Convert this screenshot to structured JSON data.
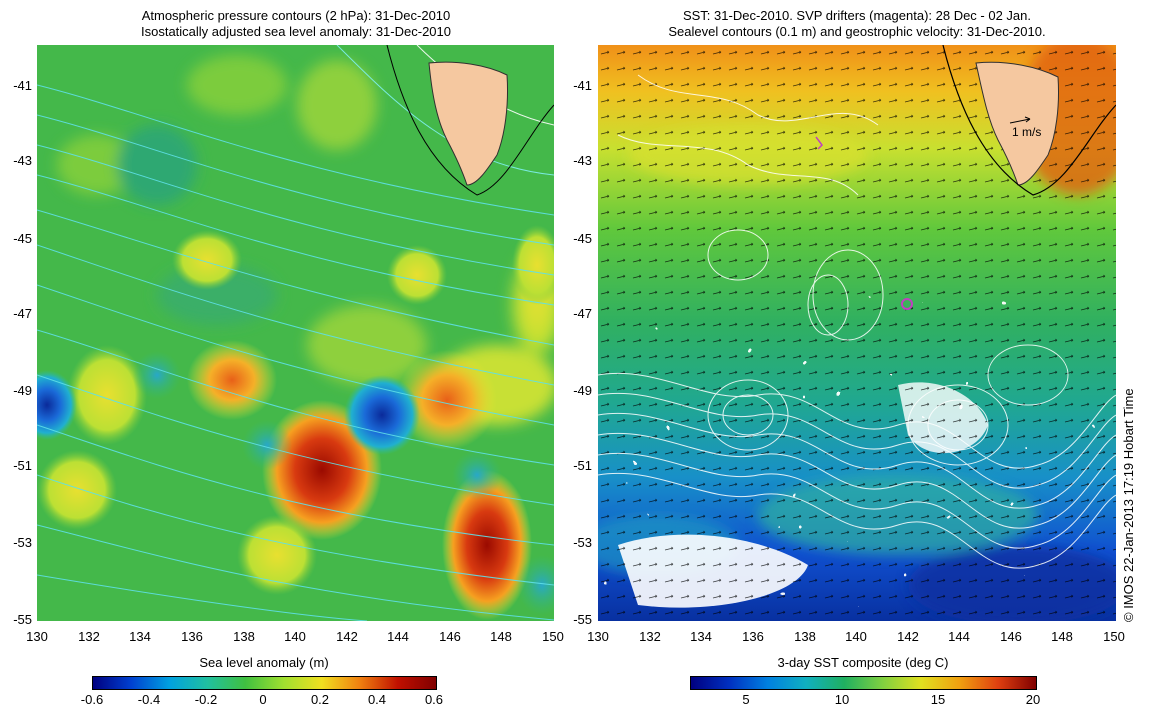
{
  "left_panel": {
    "title_line1": "Atmospheric pressure contours (2 hPa): 31-Dec-2010",
    "title_line2": "Isostatically adjusted sea level anomaly: 31-Dec-2010",
    "x_ticks": [
      "130",
      "132",
      "134",
      "136",
      "138",
      "140",
      "142",
      "144",
      "146",
      "148",
      "150"
    ],
    "y_ticks": [
      "-41",
      "-43",
      "-45",
      "-47",
      "-49",
      "-51",
      "-53",
      "-55"
    ],
    "colorbar_label": "Sea level anomaly (m)",
    "colorbar_ticks": [
      "-0.6",
      "-0.4",
      "-0.2",
      "0",
      "0.2",
      "0.4",
      "0.6"
    ]
  },
  "right_panel": {
    "title_line1": "SST: 31-Dec-2010. SVP drifters (magenta): 28 Dec - 02 Jan.",
    "title_line2": "Sealevel contours (0.1 m) and geostrophic velocity: 31-Dec-2010.",
    "x_ticks": [
      "130",
      "132",
      "134",
      "136",
      "138",
      "140",
      "142",
      "144",
      "146",
      "148",
      "150"
    ],
    "y_ticks": [
      "-41",
      "-43",
      "-45",
      "-47",
      "-49",
      "-51",
      "-53",
      "-55"
    ],
    "velocity_scale_label": "1 m/s",
    "colorbar_label": "3-day SST composite (deg C)",
    "colorbar_ticks": [
      "5",
      "10",
      "15",
      "20"
    ]
  },
  "credit": "© IMOS 22-Jan-2013 17:19 Hobart Time",
  "map_data": {
    "lon_range": [
      130,
      150
    ],
    "lat_range": [
      -55,
      -40
    ],
    "land": "Tasmania",
    "sla_range": [
      -0.6,
      0.6
    ],
    "sst_range": [
      2,
      20
    ],
    "colors": {
      "land": "#f5c8a0",
      "pressure_contour": "#5fe0e8",
      "sst_contour": "#ffffff",
      "drifter": "#c040c0",
      "sla_high": "#b01000",
      "sla_low": "#1030b0",
      "sla_mid": "#39b54a"
    }
  }
}
